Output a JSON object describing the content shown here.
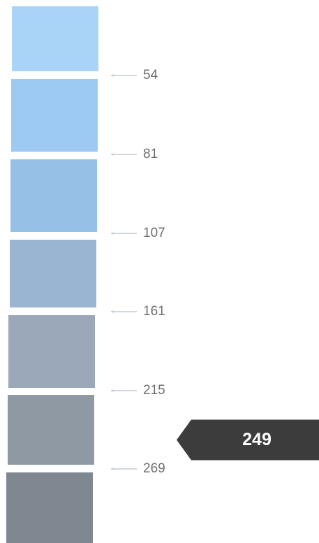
{
  "chart_data": {
    "type": "color-scale",
    "ticks": [
      54,
      81,
      107,
      161,
      215,
      269
    ],
    "tick_labels": [
      "54",
      "81",
      "107",
      "161",
      "215",
      "269"
    ],
    "pointer": {
      "value": 249,
      "label": "249"
    },
    "swatch_colors": [
      "#a9d4f7",
      "#9ccaf2",
      "#96c0e6",
      "#9ab5d1",
      "#9aa8b9",
      "#8f99a4",
      "#7f8790"
    ],
    "colors": {
      "tick_line": "#c4ccd2",
      "tick_label": "#6e6e6e",
      "pointer_background": "#3c3c3c",
      "pointer_text": "#ffffff"
    }
  }
}
